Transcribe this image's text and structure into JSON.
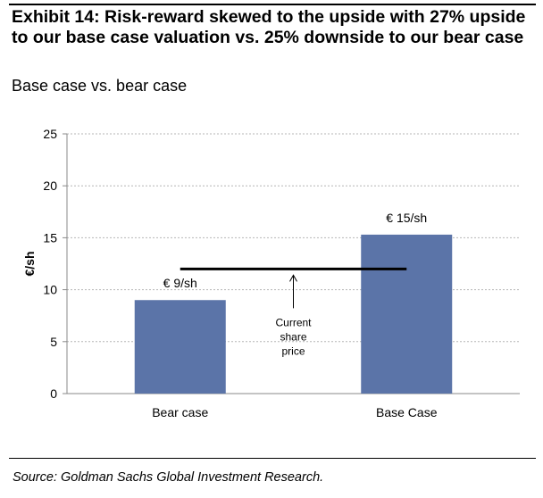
{
  "header": {
    "title": "Exhibit 14: Risk-reward skewed to the upside with 27% upside to our base case valuation vs. 25% downside to our bear case",
    "subtitle": "Base case vs. bear case"
  },
  "footer": {
    "source": "Source: Goldman Sachs Global Investment Research."
  },
  "chart_data": {
    "type": "bar",
    "categories": [
      "Bear case",
      "Base Case"
    ],
    "values": [
      9,
      15.3
    ],
    "data_labels": [
      "€ 9/sh",
      "€ 15/sh"
    ],
    "ylabel": "€/sh",
    "xlabel": "",
    "ylim": [
      0,
      25
    ],
    "yticks": [
      0,
      5,
      10,
      15,
      20,
      25
    ],
    "grid": true,
    "bar_color": "#5b74a8",
    "reference_line": {
      "value": 12,
      "label_lines": [
        "Current",
        "share",
        "price"
      ]
    }
  }
}
